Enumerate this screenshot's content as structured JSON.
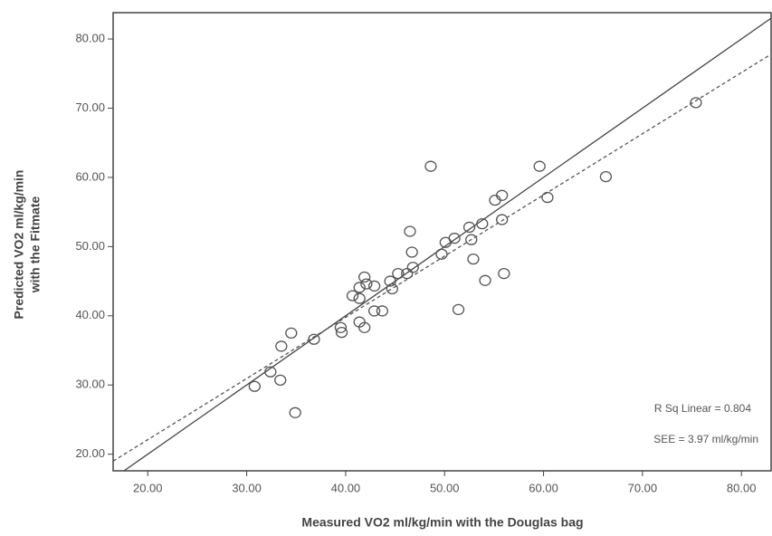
{
  "chart_data": {
    "type": "scatter",
    "x_label": "Measured VO2 ml/kg/min with the Douglas bag",
    "y_label": [
      "Predicted VO2 ml/kg/min",
      "with the Fitmate"
    ],
    "annotations": [
      "R Sq Linear = 0.804",
      "SEE = 3.97 ml/kg/min"
    ],
    "xlim": [
      16.5,
      83
    ],
    "ylim": [
      17.6,
      83.8
    ],
    "xticks": [
      {
        "value": 20,
        "label": "20.00"
      },
      {
        "value": 30,
        "label": "30.00"
      },
      {
        "value": 40,
        "label": "40.00"
      },
      {
        "value": 50,
        "label": "50.00"
      },
      {
        "value": 60,
        "label": "60.00"
      },
      {
        "value": 70,
        "label": "70.00"
      },
      {
        "value": 80,
        "label": "80.00"
      }
    ],
    "yticks": [
      {
        "value": 20,
        "label": "20.00"
      },
      {
        "value": 30,
        "label": "30.00"
      },
      {
        "value": 40,
        "label": "40.00"
      },
      {
        "value": 50,
        "label": "50.00"
      },
      {
        "value": 60,
        "label": "60.00"
      },
      {
        "value": 70,
        "label": "70.00"
      },
      {
        "value": 80,
        "label": "80.00"
      }
    ],
    "color": "#555555",
    "x": [
      75.4,
      66.3,
      59.6,
      60.4,
      48.6,
      55.1,
      55.8,
      55.8,
      53.8,
      52.5,
      52.7,
      51.0,
      50.1,
      49.7,
      52.9,
      56.0,
      54.1,
      51.4,
      46.5,
      46.7,
      46.8,
      46.2,
      45.3,
      44.5,
      44.7,
      42.9,
      41.9,
      42.1,
      41.4,
      40.7,
      41.4,
      41.9,
      41.4,
      42.9,
      43.7,
      39.5,
      39.6,
      36.8,
      34.5,
      33.5,
      33.4,
      32.4,
      30.8,
      34.9
    ],
    "y": [
      70.8,
      60.1,
      61.6,
      57.1,
      61.6,
      56.7,
      57.4,
      53.9,
      53.3,
      52.8,
      51.0,
      51.2,
      50.6,
      48.9,
      48.2,
      46.1,
      45.1,
      40.9,
      52.2,
      49.2,
      47.0,
      46.1,
      46.1,
      45.0,
      43.9,
      44.3,
      45.6,
      44.6,
      44.1,
      42.9,
      42.5,
      38.3,
      39.1,
      40.7,
      40.7,
      38.3,
      37.6,
      36.6,
      37.5,
      35.6,
      30.7,
      31.9,
      29.8,
      26.0
    ],
    "fit_line": {
      "x": [
        16.5,
        83
      ],
      "y": [
        19,
        77.8
      ]
    }
  }
}
